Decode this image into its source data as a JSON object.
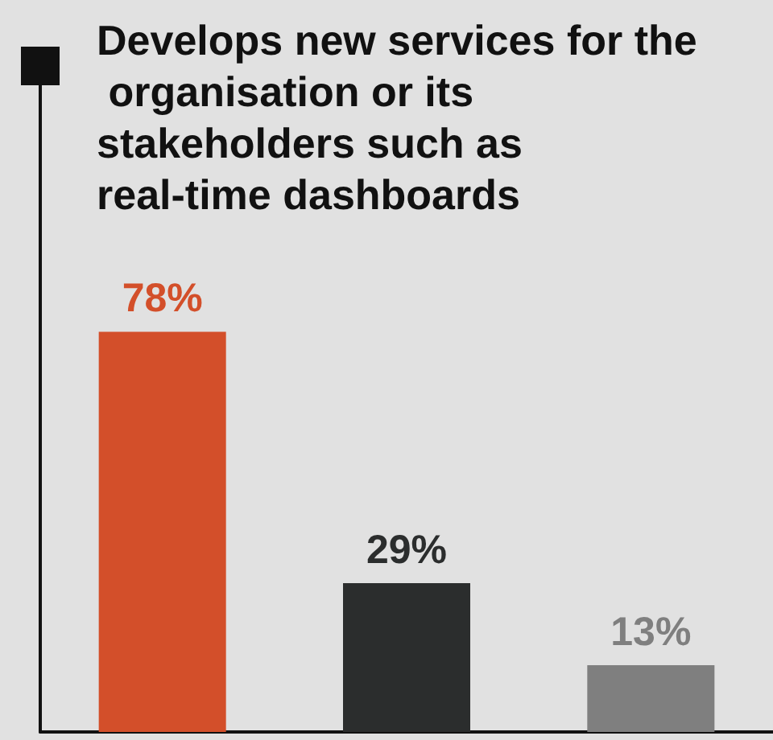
{
  "chart_data": {
    "type": "bar",
    "title": "Develops new services for the organisation or its stakeholders such as real-time dashboards",
    "categories": [
      null,
      null,
      null
    ],
    "values": [
      78,
      29,
      13
    ],
    "colors": [
      "#d34f2a",
      "#2b2d2d",
      "#7f7f7f"
    ],
    "value_labels": [
      "78%",
      "29%",
      "13%"
    ]
  }
}
